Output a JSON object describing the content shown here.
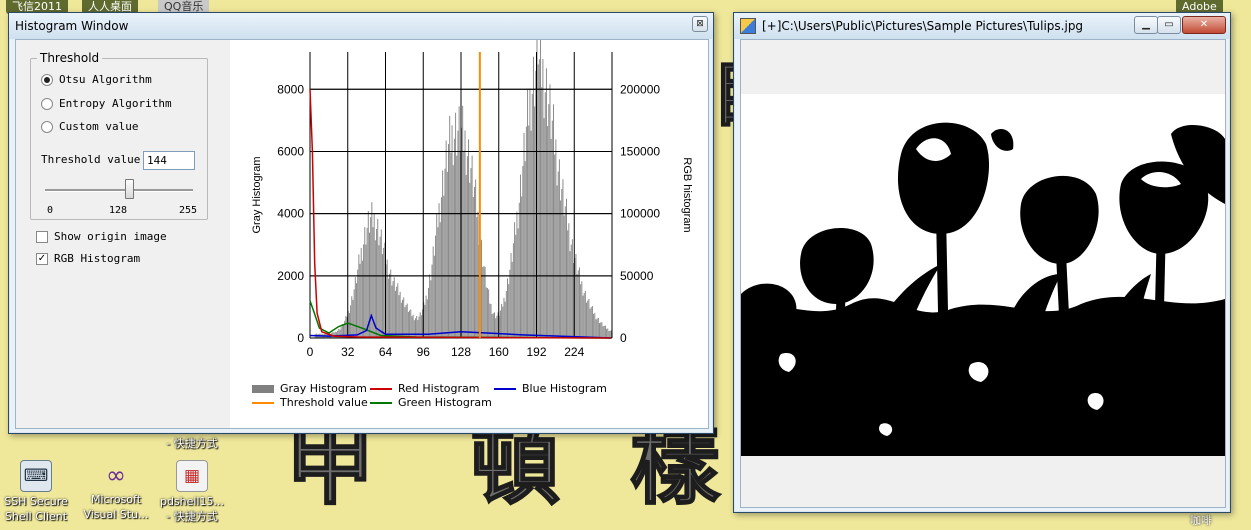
{
  "desktop": {
    "taskbar_tabs": [
      "飞信2011",
      "人人桌面",
      "QQ音乐",
      "Adobe"
    ],
    "icons": [
      {
        "label_line1": "SSH Secure",
        "label_line2": "Shell Client",
        "icon": "ssh-client-icon"
      },
      {
        "label_line1": "Microsoft",
        "label_line2": "Visual Stu...",
        "icon": "visual-studio-icon"
      },
      {
        "label_line1": "pdshell15...",
        "label_line2": "- 快捷方式",
        "icon": "pdshell-icon"
      }
    ],
    "floating_label": "- 快捷方式",
    "right_edge_label": "咖啡"
  },
  "histogram_window": {
    "title": "Histogram Window",
    "threshold_group": {
      "legend": "Threshold",
      "options": [
        {
          "label": "Otsu Algorithm",
          "selected": true
        },
        {
          "label": "Entropy Algorithm",
          "selected": false
        },
        {
          "label": "Custom value",
          "selected": false
        }
      ],
      "threshold_label": "Threshold value:",
      "threshold_value": "144",
      "slider": {
        "min_label": "0",
        "mid_label": "128",
        "max_label": "255",
        "value": 144,
        "min": 0,
        "max": 255
      }
    },
    "checkboxes": [
      {
        "label": "Show origin image",
        "checked": false
      },
      {
        "label": "RGB Histogram",
        "checked": true
      }
    ],
    "legend": [
      {
        "label": "Gray Histogram",
        "color": "#808080",
        "kind": "box"
      },
      {
        "label": "Red Histogram",
        "color": "#cc0000",
        "kind": "line"
      },
      {
        "label": "Blue Histogram",
        "color": "#0000cc",
        "kind": "line"
      },
      {
        "label": "Threshold value",
        "color": "#ff8c00",
        "kind": "line"
      },
      {
        "label": "Green Histogram",
        "color": "#007700",
        "kind": "line"
      }
    ]
  },
  "chart_data": {
    "type": "bar",
    "ylabel": "Gray Histogram",
    "y2label": "RGB histogram",
    "xlim": [
      0,
      256
    ],
    "ylim": [
      0,
      9200
    ],
    "y2lim": [
      0,
      230000
    ],
    "x_ticks": [
      "0",
      "32",
      "64",
      "96",
      "128",
      "160",
      "192",
      "224"
    ],
    "y_ticks": [
      "0",
      "2000",
      "4000",
      "6000",
      "8000"
    ],
    "y2_ticks": [
      "0",
      "50000",
      "100000",
      "150000",
      "200000"
    ],
    "threshold": 144,
    "grid": true,
    "gray_peaks": [
      {
        "center": 52,
        "height": 4300,
        "width": 11
      },
      {
        "center": 76,
        "height": 1100,
        "width": 9
      },
      {
        "center": 112,
        "height": 2600,
        "width": 10
      },
      {
        "center": 124,
        "height": 5500,
        "width": 11
      },
      {
        "center": 138,
        "height": 3200,
        "width": 9
      },
      {
        "center": 172,
        "height": 1400,
        "width": 8
      },
      {
        "center": 188,
        "height": 5600,
        "width": 10
      },
      {
        "center": 200,
        "height": 5800,
        "width": 12
      },
      {
        "center": 218,
        "height": 2200,
        "width": 12
      },
      {
        "center": 238,
        "height": 400,
        "width": 10
      }
    ],
    "gray_floor": 150,
    "gray_spike": {
      "x": 193,
      "value": 8800
    },
    "rgb": {
      "red": [
        {
          "x": 0,
          "v": 200000
        },
        {
          "x": 2,
          "v": 150000
        },
        {
          "x": 4,
          "v": 60000
        },
        {
          "x": 6,
          "v": 20000
        },
        {
          "x": 10,
          "v": 5000
        },
        {
          "x": 20,
          "v": 1500
        },
        {
          "x": 40,
          "v": 800
        },
        {
          "x": 255,
          "v": 0
        }
      ],
      "green": [
        {
          "x": 0,
          "v": 30000
        },
        {
          "x": 3,
          "v": 22000
        },
        {
          "x": 8,
          "v": 8000
        },
        {
          "x": 16,
          "v": 4000
        },
        {
          "x": 24,
          "v": 9000
        },
        {
          "x": 32,
          "v": 12000
        },
        {
          "x": 44,
          "v": 8000
        },
        {
          "x": 60,
          "v": 2000
        },
        {
          "x": 90,
          "v": 800
        },
        {
          "x": 255,
          "v": 0
        }
      ],
      "blue": [
        {
          "x": 0,
          "v": 2000
        },
        {
          "x": 16,
          "v": 1500
        },
        {
          "x": 40,
          "v": 2500
        },
        {
          "x": 48,
          "v": 6000
        },
        {
          "x": 52,
          "v": 18000
        },
        {
          "x": 56,
          "v": 8000
        },
        {
          "x": 64,
          "v": 3000
        },
        {
          "x": 100,
          "v": 3000
        },
        {
          "x": 128,
          "v": 5000
        },
        {
          "x": 150,
          "v": 4000
        },
        {
          "x": 180,
          "v": 2500
        },
        {
          "x": 220,
          "v": 1200
        },
        {
          "x": 255,
          "v": 0
        }
      ]
    }
  },
  "image_window": {
    "title": "[+]C:\\Users\\Public\\Pictures\\Sample Pictures\\Tulips.jpg"
  }
}
